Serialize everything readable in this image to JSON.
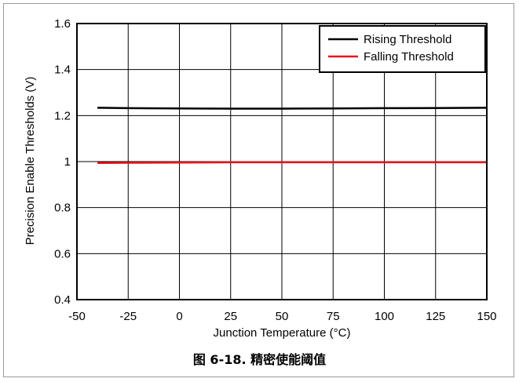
{
  "caption": "图 6-18. 精密使能阈值",
  "chart_data": {
    "type": "line",
    "title": "",
    "xlabel": "Junction Temperature (°C)",
    "ylabel": "Precision Enable Thresholds (V)",
    "xlim": [
      -50,
      150
    ],
    "ylim": [
      0.4,
      1.6
    ],
    "xticks": [
      -50,
      -25,
      0,
      25,
      50,
      75,
      100,
      125,
      150
    ],
    "yticks": [
      0.4,
      0.6,
      0.8,
      1,
      1.2,
      1.4,
      1.6
    ],
    "xtick_labels": [
      "-50",
      "-25",
      "0",
      "25",
      "50",
      "75",
      "100",
      "125",
      "150"
    ],
    "ytick_labels": [
      "0.4",
      "0.6",
      "0.8",
      "1",
      "1.2",
      "1.4",
      "1.6"
    ],
    "grid": true,
    "legend_position": "top-right",
    "series": [
      {
        "name": "Rising Threshold",
        "color": "#000000",
        "x": [
          -40,
          -25,
          0,
          25,
          50,
          75,
          100,
          125,
          150
        ],
        "y": [
          1.234,
          1.232,
          1.231,
          1.23,
          1.23,
          1.231,
          1.232,
          1.233,
          1.234
        ]
      },
      {
        "name": "Falling Threshold",
        "color": "#e8141c",
        "x": [
          -40,
          -25,
          0,
          25,
          50,
          75,
          100,
          125,
          150
        ],
        "y": [
          0.994,
          0.995,
          0.996,
          0.997,
          0.997,
          0.997,
          0.997,
          0.997,
          0.997
        ]
      }
    ]
  }
}
